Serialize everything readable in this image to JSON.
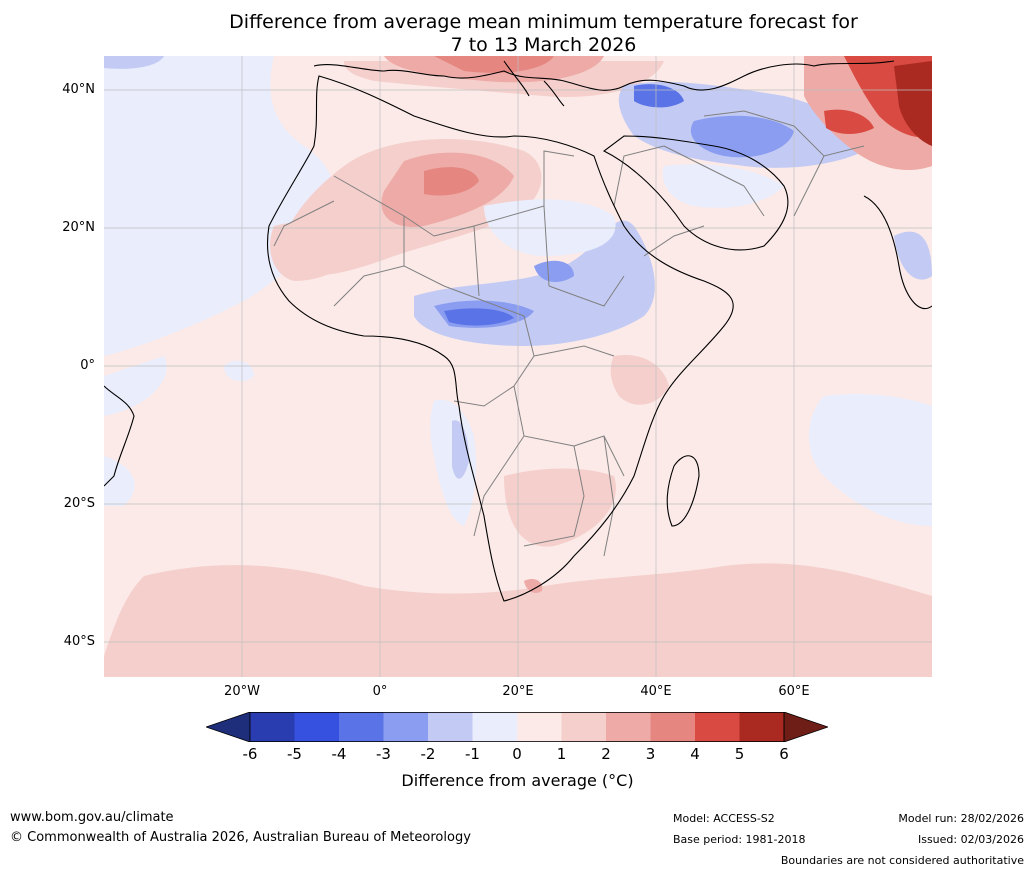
{
  "title": {
    "line1": "Difference from average mean minimum temperature forecast for",
    "line2": "7 to 13 March 2026"
  },
  "map": {
    "region": "Africa",
    "latitude_labels": [
      "40°N",
      "20°N",
      "0°",
      "20°S",
      "40°S"
    ],
    "longitude_labels": [
      "20°W",
      "0°",
      "20°E",
      "40°E",
      "60°E"
    ]
  },
  "legend": {
    "title": "Difference from average (°C)",
    "ticks": [
      "-6",
      "-5",
      "-4",
      "-3",
      "-2",
      "-1",
      "0",
      "1",
      "2",
      "3",
      "4",
      "5",
      "6"
    ],
    "colors": [
      "#1f2e7a",
      "#2a3db0",
      "#3650e0",
      "#5a73e6",
      "#8a9df0",
      "#c3cbf4",
      "#eaedfc",
      "#fbeae8",
      "#f5cfcc",
      "#edaaa6",
      "#e58680",
      "#d94a42",
      "#aa2a22",
      "#6e1d17"
    ]
  },
  "footer": {
    "website": "www.bom.gov.au/climate",
    "copyright": "© Commonwealth of Australia 2026, Australian Bureau of Meteorology",
    "model": "Model: ACCESS-S2",
    "base_period": "Base period: 1981-2018",
    "model_run": "Model run: 28/02/2026",
    "issued": "Issued: 02/03/2026",
    "disclaimer": "Boundaries are not considered authoritative"
  }
}
